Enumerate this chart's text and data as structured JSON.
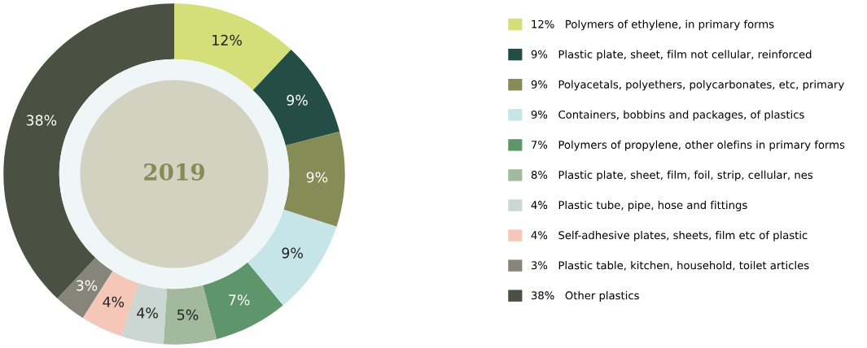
{
  "chart_data": {
    "type": "donut",
    "title": "2019",
    "categories": [
      "12%   Polymers of ethylene, in primary forms",
      "9%   Plastic plate, sheet, film not cellular, reinforced",
      "9%   Polyacetals, polyethers, polycarbonates, etc, primary",
      "9%   Containers, bobbins and packages, of plastics",
      "7%   Polymers of propylene, other olefins in primary forms",
      "8%   Plastic plate, sheet, film, foil, strip, cellular, nes",
      "4%   Plastic tube, pipe, hose and fittings",
      "4%   Self-adhesive plates, sheets, film etc of plastic",
      "3%   Plastic table, kitchen, household, toilet articles",
      "38%   Other plastics"
    ],
    "values": [
      12,
      9,
      9,
      9,
      7,
      5,
      4,
      4,
      3,
      38
    ],
    "value_labels": [
      "12%",
      "9%",
      "9%",
      "9%",
      "7%",
      "5%",
      "4%",
      "4%",
      "3%",
      "38%"
    ],
    "colors": [
      "#d4df7a",
      "#234d45",
      "#858c55",
      "#c6e5e8",
      "#5e956b",
      "#a2b99d",
      "#ccd6d2",
      "#f4c7b9",
      "#85857a",
      "#4b5142"
    ],
    "legend": "right"
  }
}
